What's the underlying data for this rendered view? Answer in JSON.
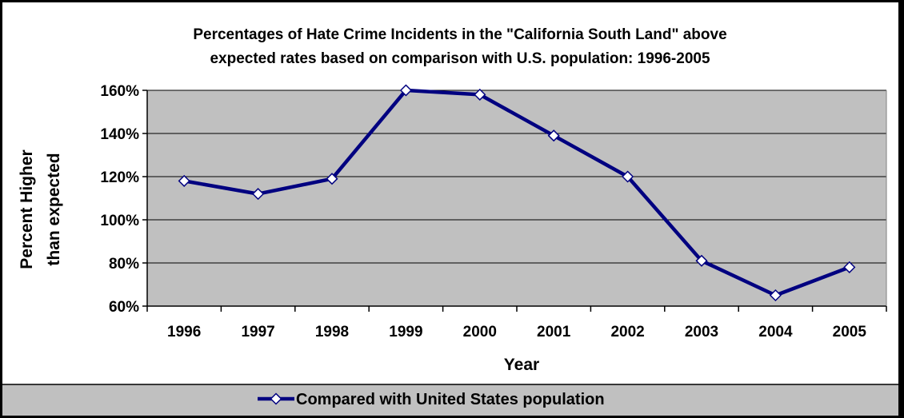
{
  "chart_data": {
    "type": "line",
    "title": "Percentages of Hate Crime Incidents in the \"California South Land\" above expected rates based on comparison with U.S. population:  1996-2005",
    "title_lines": [
      "Percentages of Hate Crime Incidents in the \"California South Land\" above",
      "expected rates based on comparison with U.S. population:  1996-2005"
    ],
    "xlabel": "Year",
    "ylabel": "Percent Higher than expected",
    "ylabel_lines": [
      "Percent Higher",
      "than expected"
    ],
    "categories": [
      "1996",
      "1997",
      "1998",
      "1999",
      "2000",
      "2001",
      "2002",
      "2003",
      "2004",
      "2005"
    ],
    "series": [
      {
        "name": "Compared with United States population",
        "values": [
          118,
          112,
          119,
          160,
          158,
          139,
          120,
          81,
          65,
          78
        ]
      }
    ],
    "ylim": [
      60,
      160
    ],
    "yticks": [
      60,
      80,
      100,
      120,
      140,
      160
    ],
    "ytick_labels": [
      "60%",
      "80%",
      "100%",
      "120%",
      "140%",
      "160%"
    ],
    "grid": true,
    "legend": "bottom",
    "colors": {
      "line": "#000080",
      "marker_fill": "#ffffff",
      "plot_background": "#c0c0c0",
      "legend_background": "#c0c0c0",
      "gridline": "#000000"
    }
  }
}
